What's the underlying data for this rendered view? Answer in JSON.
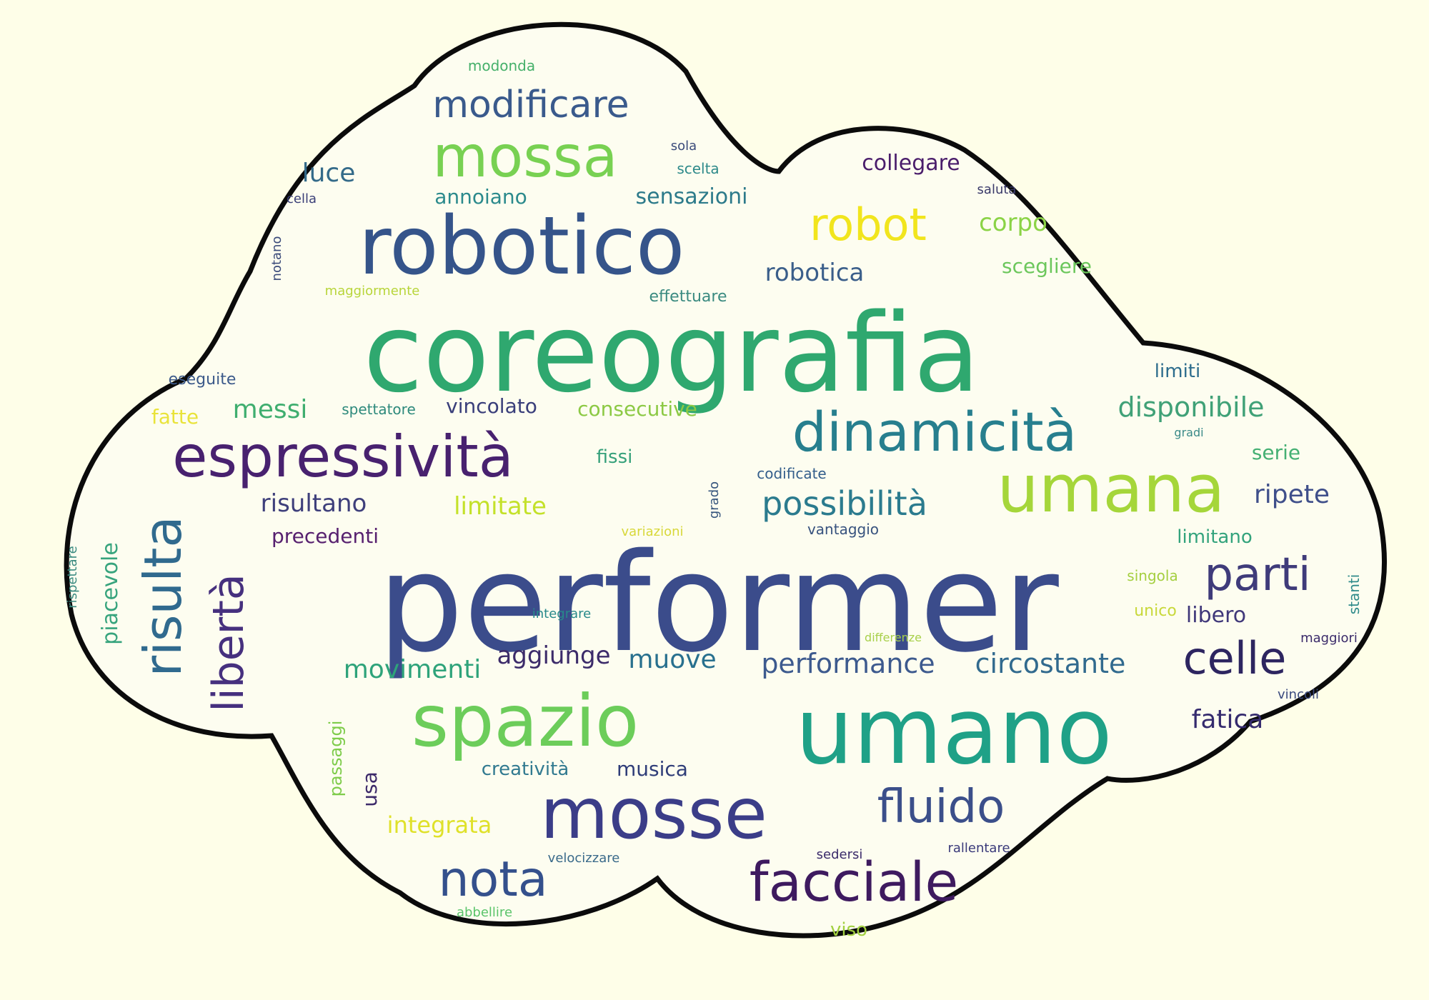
{
  "colors": {
    "background": "#fefee8",
    "cloud_fill": "#fdfdf0",
    "cloud_outline": "#0b0b0b"
  },
  "words": [
    {
      "text": "performer",
      "color": "#3b4c8b"
    },
    {
      "text": "coreografia",
      "color": "#2fa86f"
    },
    {
      "text": "umano",
      "color": "#1fa187"
    },
    {
      "text": "robotico",
      "color": "#35548a"
    },
    {
      "text": "spazio",
      "color": "#6ccd5a"
    },
    {
      "text": "mosse",
      "color": "#3b3d88"
    },
    {
      "text": "umana",
      "color": "#a5d63a"
    },
    {
      "text": "espressività",
      "color": "#48216f"
    },
    {
      "text": "mossa",
      "color": "#78d152"
    },
    {
      "text": "dinamicità",
      "color": "#277f8e"
    },
    {
      "text": "robot",
      "color": "#f1e51d"
    },
    {
      "text": "risulta",
      "color": "#306a8e"
    },
    {
      "text": "libertà",
      "color": "#46307e"
    },
    {
      "text": "facciale",
      "color": "#3e1a5f"
    },
    {
      "text": "parti",
      "color": "#3f3b7a"
    },
    {
      "text": "celle",
      "color": "#2d2560"
    },
    {
      "text": "fluido",
      "color": "#3b4f8a"
    },
    {
      "text": "nota",
      "color": "#34508c"
    },
    {
      "text": "possibilità",
      "color": "#2b7b8e"
    },
    {
      "text": "modificare",
      "color": "#3a5a8c"
    },
    {
      "text": "movimenti",
      "color": "#2ea37a"
    },
    {
      "text": "performance",
      "color": "#3d5a8e"
    },
    {
      "text": "circostante",
      "color": "#316a8e"
    },
    {
      "text": "disponibile",
      "color": "#40a177"
    },
    {
      "text": "messi",
      "color": "#3fae6f"
    },
    {
      "text": "muove",
      "color": "#28708e"
    },
    {
      "text": "aggiunge",
      "color": "#3c2b6a"
    },
    {
      "text": "risultano",
      "color": "#3e3f7b"
    },
    {
      "text": "limitate",
      "color": "#c4e12a"
    },
    {
      "text": "corpo",
      "color": "#8bd346"
    },
    {
      "text": "robotica",
      "color": "#3a5e8a"
    },
    {
      "text": "sensazioni",
      "color": "#2c7a8a"
    },
    {
      "text": "collegare",
      "color": "#4a1d6b"
    },
    {
      "text": "luce",
      "color": "#336a89"
    },
    {
      "text": "fatica",
      "color": "#352b6e"
    },
    {
      "text": "ripete",
      "color": "#3f4f8a"
    },
    {
      "text": "integrata",
      "color": "#dfe12a"
    },
    {
      "text": "piacevole",
      "color": "#37a47d"
    },
    {
      "text": "precedenti",
      "color": "#57206f"
    },
    {
      "text": "consecutive",
      "color": "#8cc944"
    },
    {
      "text": "vincolato",
      "color": "#393e7a"
    },
    {
      "text": "scegliere",
      "color": "#6cc75c"
    },
    {
      "text": "limiti",
      "color": "#2c6c8c"
    },
    {
      "text": "limitano",
      "color": "#33a37c"
    },
    {
      "text": "libero",
      "color": "#40387a"
    },
    {
      "text": "serie",
      "color": "#45b073"
    },
    {
      "text": "fatte",
      "color": "#e9e33a"
    },
    {
      "text": "annoiano",
      "color": "#2b8a8c"
    },
    {
      "text": "musica",
      "color": "#2f3d78"
    },
    {
      "text": "creatività",
      "color": "#317a90"
    },
    {
      "text": "usa",
      "color": "#3d2a6a"
    },
    {
      "text": "passaggi",
      "color": "#7ecc4a"
    },
    {
      "text": "viso",
      "color": "#a2d040"
    },
    {
      "text": "fissi",
      "color": "#35a07a"
    },
    {
      "text": "eseguite",
      "color": "#3c5a8a"
    },
    {
      "text": "spettatore",
      "color": "#2e8a7c"
    },
    {
      "text": "vantaggio",
      "color": "#37527e"
    },
    {
      "text": "codificate",
      "color": "#345e8b"
    },
    {
      "text": "grado",
      "color": "#37567e"
    },
    {
      "text": "variazioni",
      "color": "#d8d83a"
    },
    {
      "text": "integrare",
      "color": "#27898a"
    },
    {
      "text": "differenze",
      "color": "#a8d04a"
    },
    {
      "text": "singola",
      "color": "#a5cf40"
    },
    {
      "text": "unico",
      "color": "#c8d83a"
    },
    {
      "text": "maggiori",
      "color": "#3a2a6a"
    },
    {
      "text": "vincoli",
      "color": "#3a4a7e"
    },
    {
      "text": "stanti",
      "color": "#2e8a8a"
    },
    {
      "text": "rispettare",
      "color": "#3a8a80"
    },
    {
      "text": "velocizzare",
      "color": "#3a6a8a"
    },
    {
      "text": "abbellire",
      "color": "#5ac46a"
    },
    {
      "text": "sedersi",
      "color": "#3a2a6a"
    },
    {
      "text": "rallentare",
      "color": "#3a3a7a"
    },
    {
      "text": "modonda",
      "color": "#45b06a"
    },
    {
      "text": "sola",
      "color": "#3a4a7a"
    },
    {
      "text": "scelta",
      "color": "#2e8a8a"
    },
    {
      "text": "saluta",
      "color": "#3a3a6a"
    },
    {
      "text": "cella",
      "color": "#3a3f78"
    },
    {
      "text": "notano",
      "color": "#3a4a7a"
    },
    {
      "text": "maggiormente",
      "color": "#b8d53a"
    },
    {
      "text": "effettuare",
      "color": "#3a8a80"
    },
    {
      "text": "gradi",
      "color": "#3a8a88"
    }
  ]
}
